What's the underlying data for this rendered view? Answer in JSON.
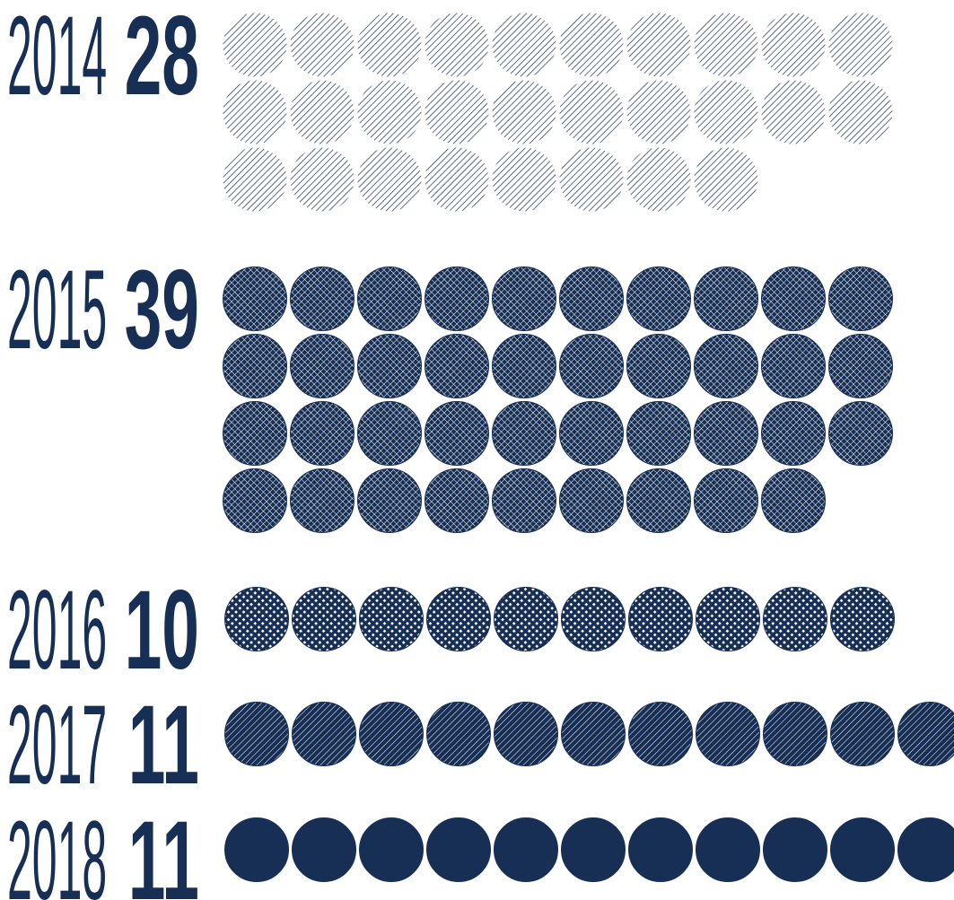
{
  "chart_data": {
    "type": "pictogram",
    "categories": [
      "2014",
      "2015",
      "2016",
      "2017",
      "2018"
    ],
    "values": [
      28,
      39,
      10,
      11,
      11
    ],
    "color": "#172f55",
    "patterns": [
      "sparse-diagonal",
      "crosshatch",
      "dots",
      "dense-diagonal",
      "solid"
    ]
  }
}
